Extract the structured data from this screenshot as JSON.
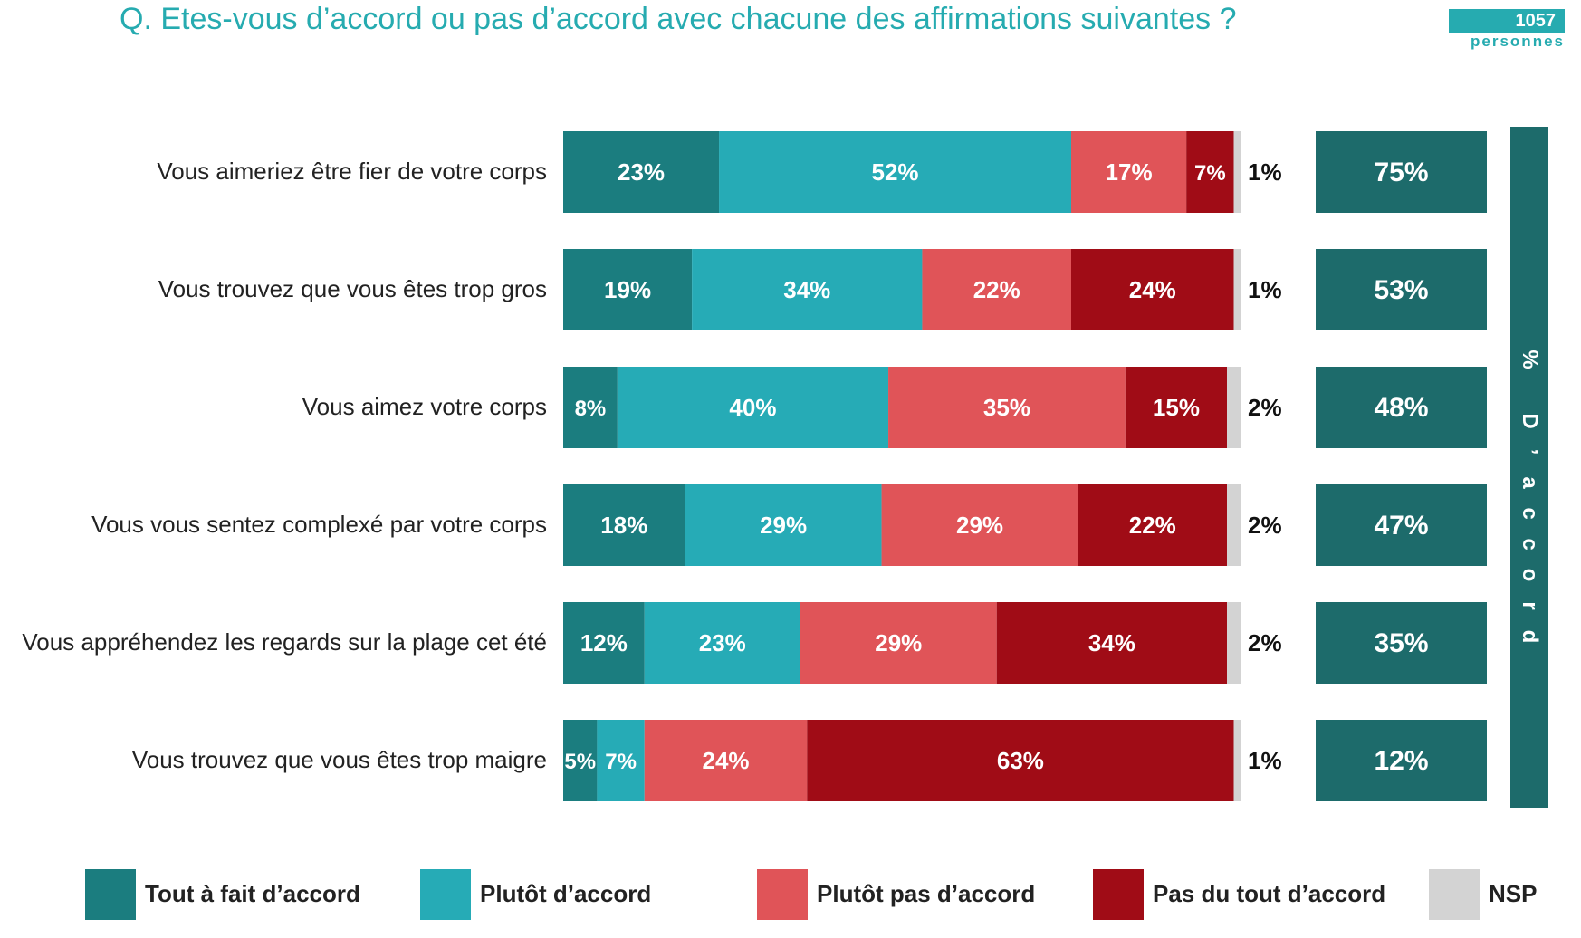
{
  "title": "Q. Etes-vous d’accord ou pas d’accord avec chacune des affirmations suivantes ?",
  "badge": {
    "count": "1057",
    "unit": "personnes"
  },
  "side_label": "% D’accord",
  "colors": {
    "tout_a_fait": "#1b7d7f",
    "plutot": "#26abb6",
    "plutot_pas": "#e05458",
    "pas_du_tout": "#a00c16",
    "nsp": "#d3d3d3",
    "total": "#1d6b6b",
    "title": "#26abb0"
  },
  "chart_data": {
    "type": "bar",
    "orientation": "horizontal-stacked",
    "categories": [
      "Vous aimeriez être fier de votre corps",
      "Vous trouvez que vous êtes trop gros",
      "Vous aimez votre corps",
      "Vous vous sentez complexé par votre corps",
      "Vous appréhendez les regards sur la plage cet été",
      "Vous trouvez que vous êtes trop maigre"
    ],
    "series": [
      {
        "name": "Tout à fait d’accord",
        "values": [
          23,
          19,
          8,
          18,
          12,
          5
        ]
      },
      {
        "name": "Plutôt d’accord",
        "values": [
          52,
          34,
          40,
          29,
          23,
          7
        ]
      },
      {
        "name": "Plutôt pas d’accord",
        "values": [
          17,
          22,
          35,
          29,
          29,
          24
        ]
      },
      {
        "name": "Pas du tout d’accord",
        "values": [
          7,
          24,
          15,
          22,
          34,
          63
        ]
      },
      {
        "name": "NSP",
        "values": [
          1,
          1,
          2,
          2,
          2,
          1
        ]
      }
    ],
    "totals_accord": [
      75,
      53,
      48,
      47,
      35,
      12
    ],
    "value_suffix": "%",
    "legend_position": "bottom"
  }
}
